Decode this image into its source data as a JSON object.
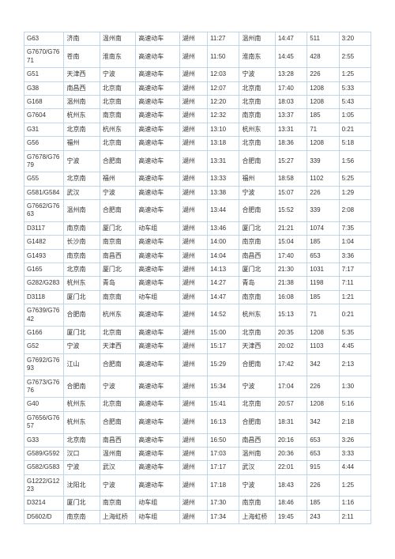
{
  "table": {
    "rows": [
      [
        "G63",
        "济南",
        "温州南",
        "高速动车",
        "湖州",
        "11:27",
        "温州南",
        "14:47",
        "511",
        "3:20"
      ],
      [
        "G7670/G7671",
        "苍南",
        "淮南东",
        "高速动车",
        "湖州",
        "11:50",
        "淮南东",
        "14:45",
        "428",
        "2:55"
      ],
      [
        "G51",
        "天津西",
        "宁波",
        "高速动车",
        "湖州",
        "12:03",
        "宁波",
        "13:28",
        "226",
        "1:25"
      ],
      [
        "G38",
        "南昌西",
        "北京南",
        "高速动车",
        "湖州",
        "12:07",
        "北京南",
        "17:40",
        "1208",
        "5:33"
      ],
      [
        "G168",
        "温州南",
        "北京南",
        "高速动车",
        "湖州",
        "12:20",
        "北京南",
        "18:03",
        "1208",
        "5:43"
      ],
      [
        "G7604",
        "杭州东",
        "南京南",
        "高速动车",
        "湖州",
        "12:32",
        "南京南",
        "13:37",
        "185",
        "1:05"
      ],
      [
        "G31",
        "北京南",
        "杭州东",
        "高速动车",
        "湖州",
        "13:10",
        "杭州东",
        "13:31",
        "71",
        "0:21"
      ],
      [
        "G56",
        "福州",
        "北京南",
        "高速动车",
        "湖州",
        "13:18",
        "北京南",
        "18:36",
        "1208",
        "5:18"
      ],
      [
        "G7678/G7679",
        "宁波",
        "合肥南",
        "高速动车",
        "湖州",
        "13:31",
        "合肥南",
        "15:27",
        "339",
        "1:56"
      ],
      [
        "G55",
        "北京南",
        "福州",
        "高速动车",
        "湖州",
        "13:33",
        "福州",
        "18:58",
        "1102",
        "5:25"
      ],
      [
        "G581/G584",
        "武汉",
        "宁波",
        "高速动车",
        "湖州",
        "13:38",
        "宁波",
        "15:07",
        "226",
        "1:29"
      ],
      [
        "G7662/G7663",
        "温州南",
        "合肥南",
        "高速动车",
        "湖州",
        "13:44",
        "合肥南",
        "15:52",
        "339",
        "2:08"
      ],
      [
        "D3117",
        "南京南",
        "厦门北",
        "动车组",
        "湖州",
        "13:46",
        "厦门北",
        "21:21",
        "1074",
        "7:35"
      ],
      [
        "G1482",
        "长沙南",
        "南京南",
        "高速动车",
        "湖州",
        "14:00",
        "南京南",
        "15:04",
        "185",
        "1:04"
      ],
      [
        "G1493",
        "南京南",
        "南昌西",
        "高速动车",
        "湖州",
        "14:04",
        "南昌西",
        "17:40",
        "653",
        "3:36"
      ],
      [
        "G165",
        "北京南",
        "厦门北",
        "高速动车",
        "湖州",
        "14:13",
        "厦门北",
        "21:30",
        "1031",
        "7:17"
      ],
      [
        "G282/G283",
        "杭州东",
        "青岛",
        "高速动车",
        "湖州",
        "14:27",
        "青岛",
        "21:38",
        "1198",
        "7:11"
      ],
      [
        "D3118",
        "厦门北",
        "南京南",
        "动车组",
        "湖州",
        "14:47",
        "南京南",
        "16:08",
        "185",
        "1:21"
      ],
      [
        "G7639/G7642",
        "合肥南",
        "杭州东",
        "高速动车",
        "湖州",
        "14:52",
        "杭州东",
        "15:13",
        "71",
        "0:21"
      ],
      [
        "G166",
        "厦门北",
        "北京南",
        "高速动车",
        "湖州",
        "15:00",
        "北京南",
        "20:35",
        "1208",
        "5:35"
      ],
      [
        "G52",
        "宁波",
        "天津西",
        "高速动车",
        "湖州",
        "15:17",
        "天津西",
        "20:02",
        "1103",
        "4:45"
      ],
      [
        "G7692/G7693",
        "江山",
        "合肥南",
        "高速动车",
        "湖州",
        "15:29",
        "合肥南",
        "17:42",
        "342",
        "2:13"
      ],
      [
        "G7673/G7676",
        "合肥南",
        "宁波",
        "高速动车",
        "湖州",
        "15:34",
        "宁波",
        "17:04",
        "226",
        "1:30"
      ],
      [
        "G40",
        "杭州东",
        "北京南",
        "高速动车",
        "湖州",
        "15:41",
        "北京南",
        "20:57",
        "1208",
        "5:16"
      ],
      [
        "G7656/G7657",
        "杭州东",
        "合肥南",
        "高速动车",
        "湖州",
        "16:13",
        "合肥南",
        "18:31",
        "342",
        "2:18"
      ],
      [
        "G33",
        "北京南",
        "南昌西",
        "高速动车",
        "湖州",
        "16:50",
        "南昌西",
        "20:16",
        "653",
        "3:26"
      ],
      [
        "G589/G592",
        "汉口",
        "温州南",
        "高速动车",
        "湖州",
        "17:03",
        "温州南",
        "20:36",
        "653",
        "3:33"
      ],
      [
        "G582/G583",
        "宁波",
        "武汉",
        "高速动车",
        "湖州",
        "17:17",
        "武汉",
        "22:01",
        "915",
        "4:44"
      ],
      [
        "G1222/G1223",
        "沈阳北",
        "宁波",
        "高速动车",
        "湖州",
        "17:18",
        "宁波",
        "18:43",
        "226",
        "1:25"
      ],
      [
        "D3214",
        "厦门北",
        "南京南",
        "动车组",
        "湖州",
        "17:30",
        "南京南",
        "18:46",
        "185",
        "1:16"
      ],
      [
        "D5602/D",
        "南京南",
        "上海虹桥",
        "动车组",
        "湖州",
        "17:34",
        "上海虹桥",
        "19:45",
        "243",
        "2:11"
      ]
    ]
  }
}
